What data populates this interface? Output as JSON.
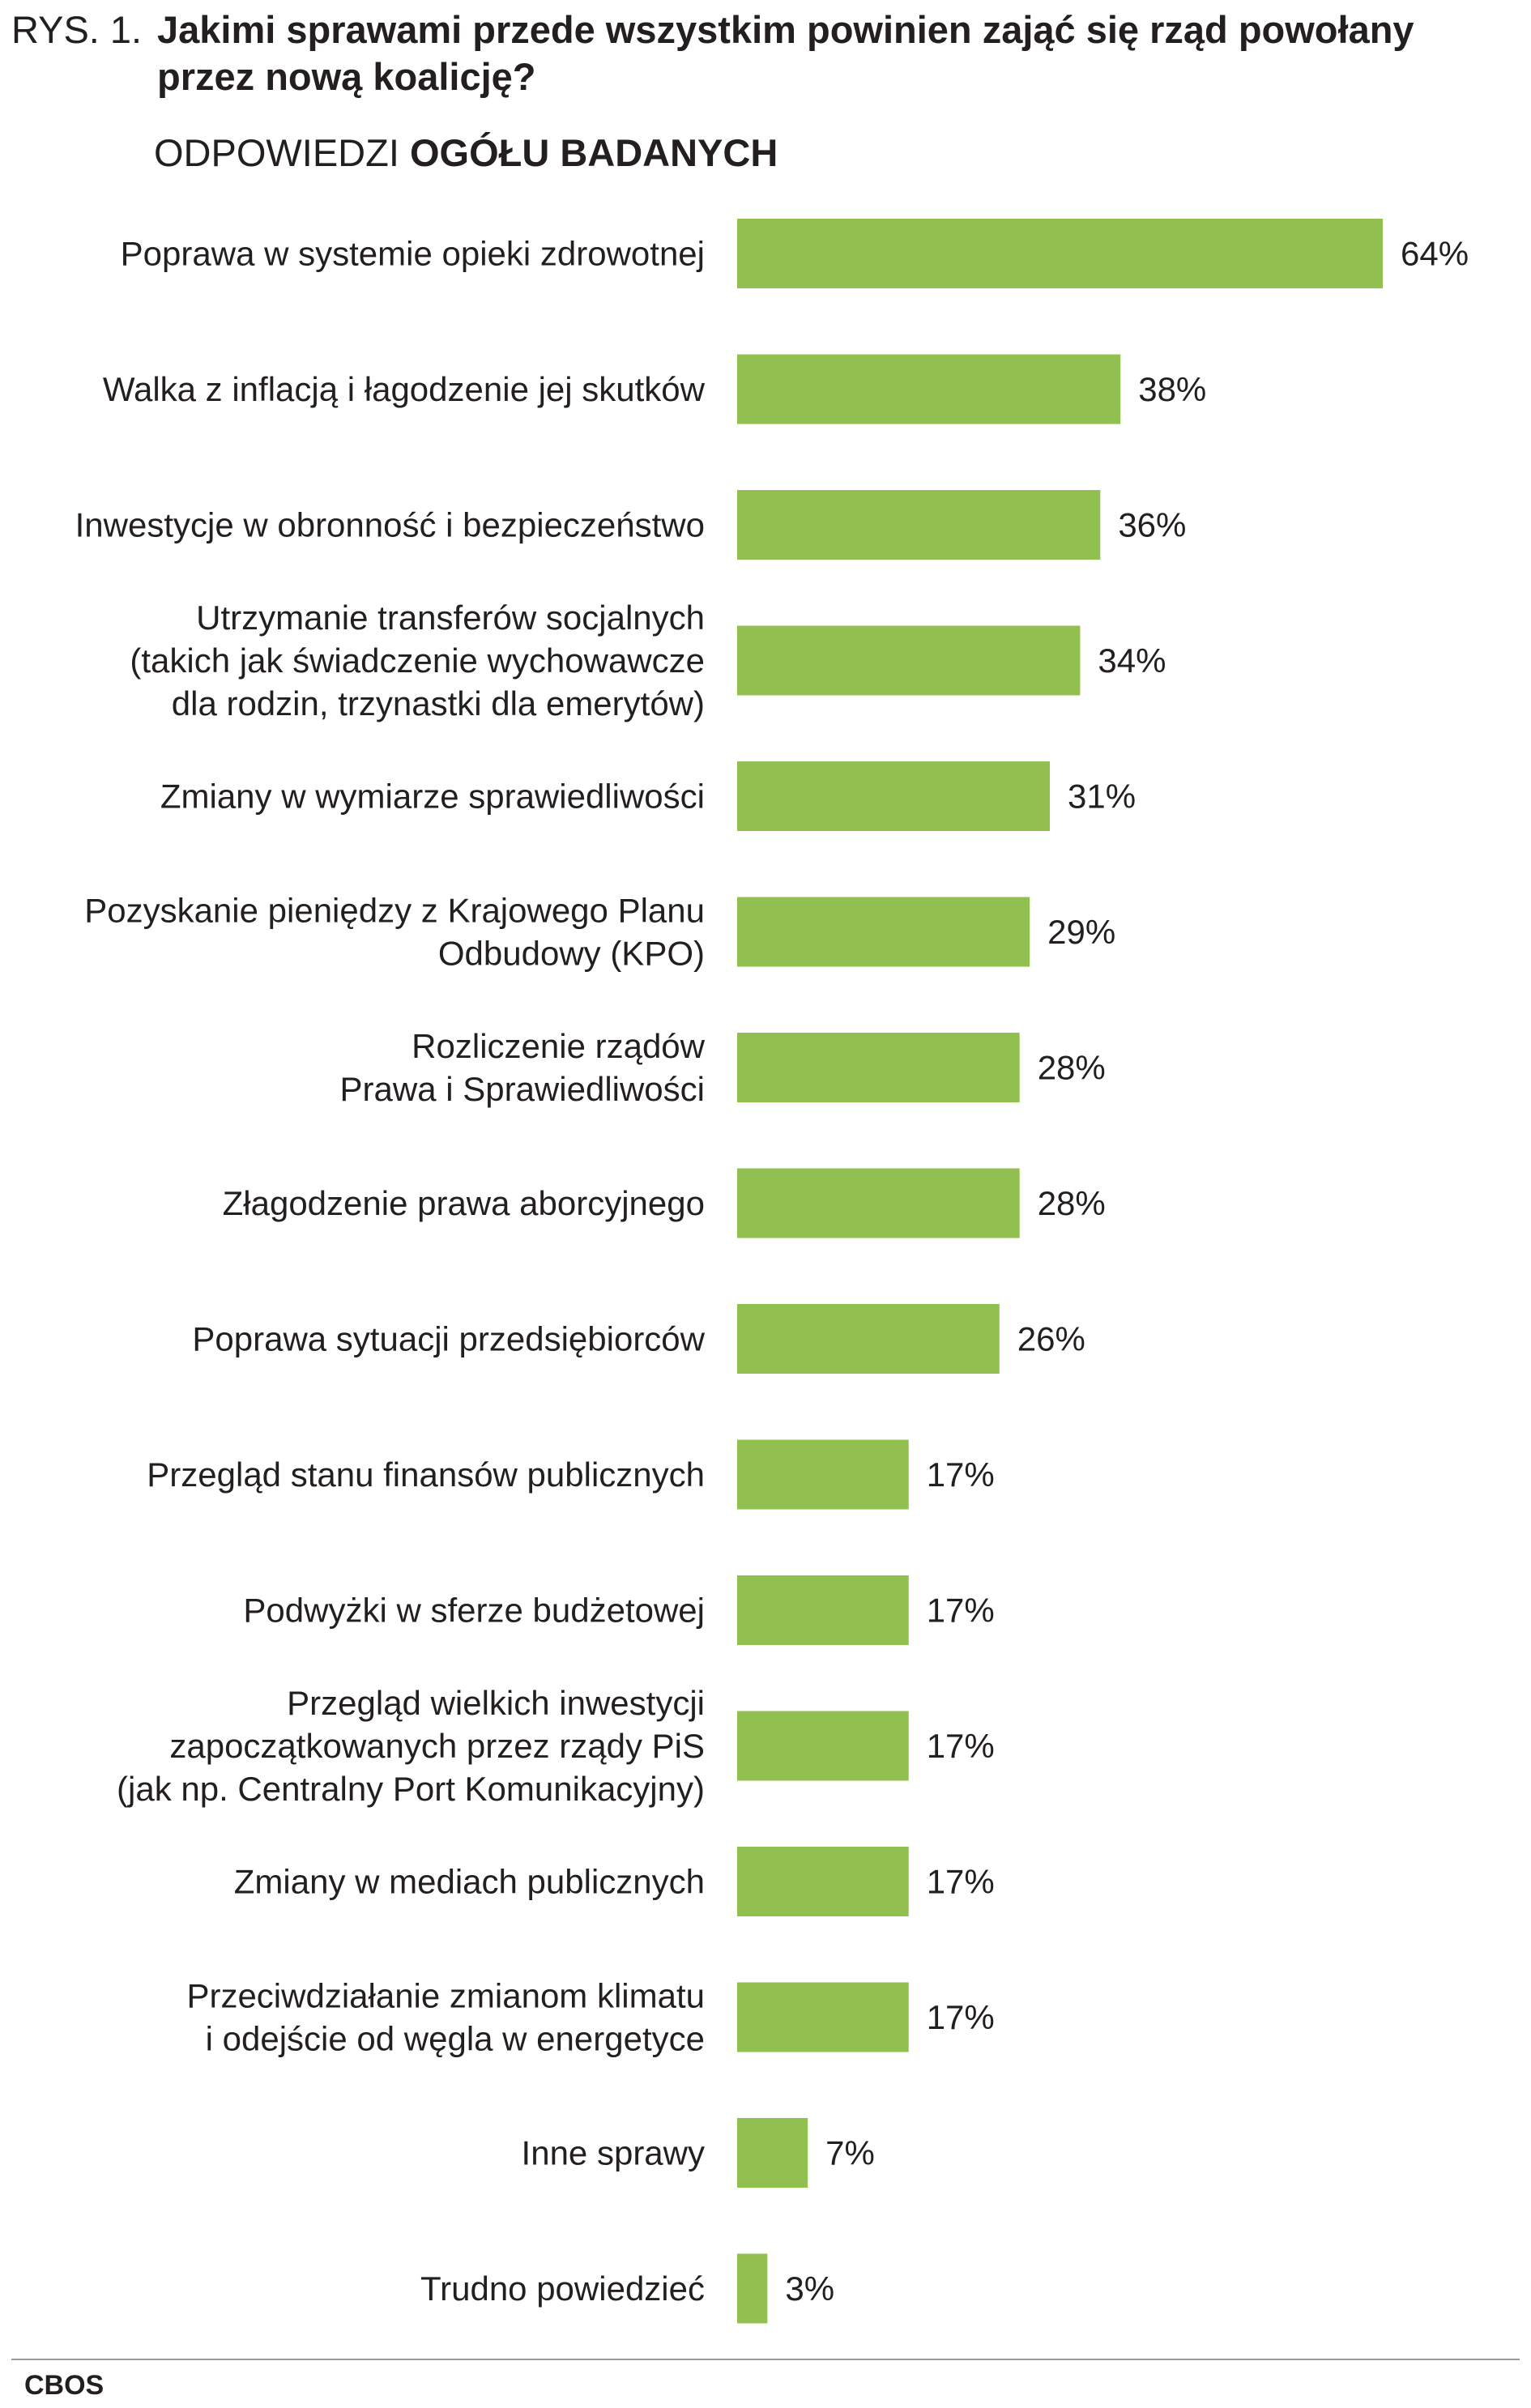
{
  "header": {
    "figure_number": "RYS. 1.",
    "question": "Jakimi sprawami przede wszystkim powinien zająć się rząd powołany przez nową koalicję?",
    "subtitle_prefix": "ODPOWIEDZI",
    "subtitle_bold": "OGÓŁU BADANYCH"
  },
  "footer": {
    "source": "CBOS"
  },
  "chart_data": {
    "type": "bar",
    "orientation": "horizontal",
    "bar_color": "#92c050",
    "categories": [
      [
        "Poprawa w systemie opieki zdrowotnej"
      ],
      [
        "Walka z inflacją i łagodzenie jej skutków"
      ],
      [
        "Inwestycje w obronność i bezpieczeństwo"
      ],
      [
        "Utrzymanie transferów socjalnych",
        "(takich jak świadczenie wychowawcze",
        "dla rodzin, trzynastki dla emerytów)"
      ],
      [
        "Zmiany w wymiarze sprawiedliwości"
      ],
      [
        "Pozyskanie pieniędzy z Krajowego Planu",
        "Odbudowy (KPO)"
      ],
      [
        "Rozliczenie rządów",
        "Prawa i Sprawiedliwości"
      ],
      [
        "Złagodzenie prawa aborcyjnego"
      ],
      [
        "Poprawa sytuacji przedsiębiorców"
      ],
      [
        "Przegląd stanu finansów publicznych"
      ],
      [
        "Podwyżki w sferze budżetowej"
      ],
      [
        "Przegląd wielkich inwestycji",
        "zapoczątkowanych przez rządy PiS",
        "(jak np. Centralny Port Komunikacyjny)"
      ],
      [
        "Zmiany w mediach publicznych"
      ],
      [
        "Przeciwdziałanie zmianom klimatu",
        "i odejście od węgla w energetyce"
      ],
      [
        "Inne sprawy"
      ],
      [
        "Trudno powiedzieć"
      ]
    ],
    "values": [
      64,
      38,
      36,
      34,
      31,
      29,
      28,
      28,
      26,
      17,
      17,
      17,
      17,
      17,
      7,
      3
    ],
    "value_labels": [
      "64%",
      "38%",
      "36%",
      "34%",
      "31%",
      "29%",
      "28%",
      "28%",
      "26%",
      "17%",
      "17%",
      "17%",
      "17%",
      "17%",
      "7%",
      "3%"
    ],
    "xlim": [
      0,
      64
    ],
    "grid": false,
    "legend": false
  }
}
